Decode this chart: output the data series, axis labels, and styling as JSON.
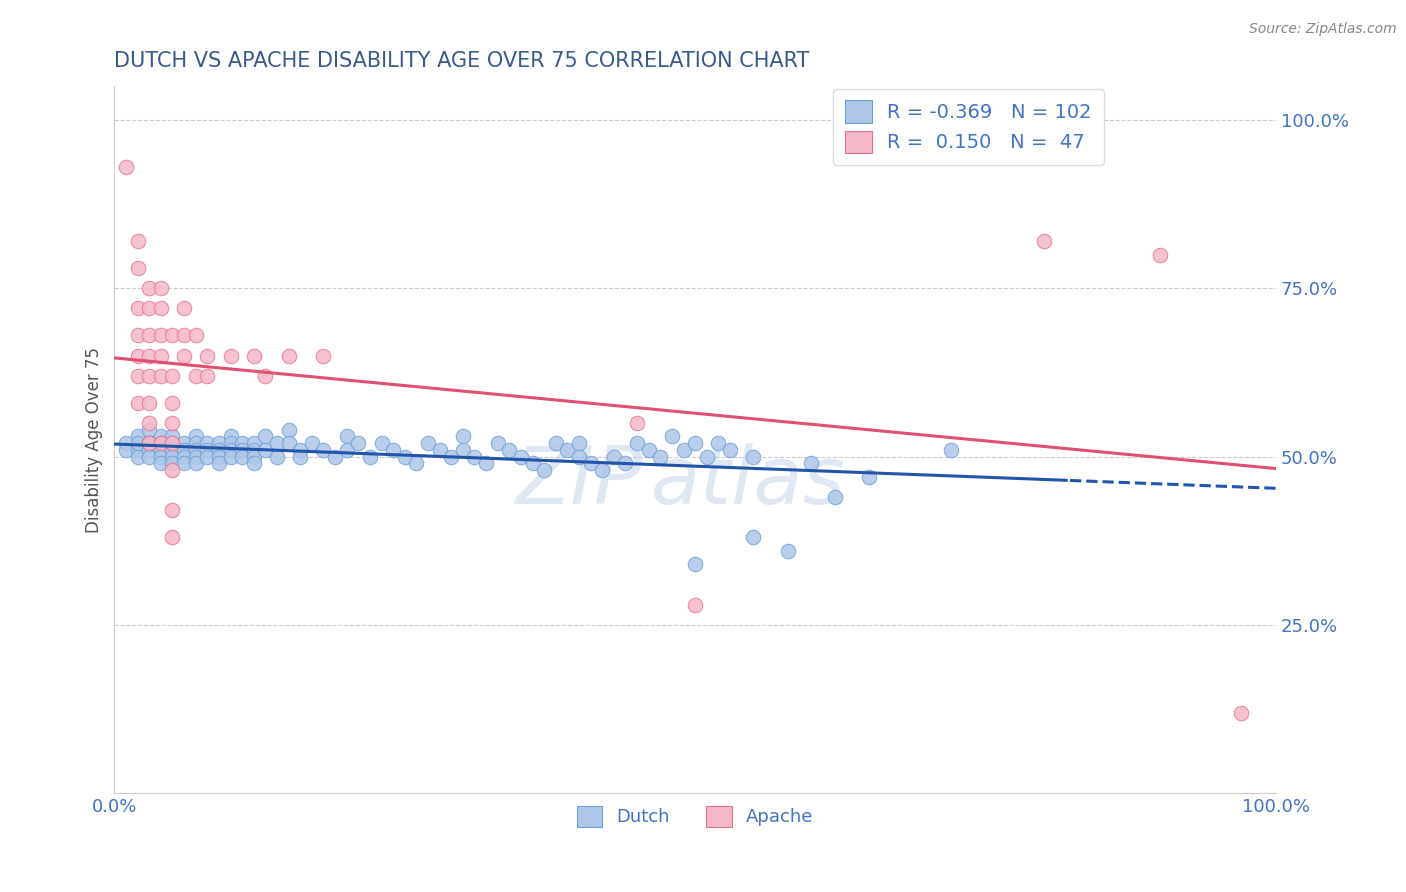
{
  "title": "DUTCH VS APACHE DISABILITY AGE OVER 75 CORRELATION CHART",
  "source": "Source: ZipAtlas.com",
  "ylabel": "Disability Age Over 75",
  "r_dutch": -0.369,
  "n_dutch": 102,
  "r_apache": 0.15,
  "n_apache": 47,
  "watermark_top": "ZIP",
  "watermark_bot": "atlas",
  "title_color": "#3a5a8c",
  "axis_tick_color": "#4472c4",
  "ylabel_color": "#555555",
  "dutch_fill": "#aec6e8",
  "apache_fill": "#f5b8c8",
  "dutch_edge": "#6a9fd8",
  "apache_edge": "#e87090",
  "dutch_line_color": "#2255aa",
  "apache_line_color": "#e05070",
  "grid_color": "#cccccc",
  "background_color": "#ffffff",
  "dutch_scatter": [
    [
      0.01,
      0.52
    ],
    [
      0.01,
      0.51
    ],
    [
      0.02,
      0.53
    ],
    [
      0.02,
      0.51
    ],
    [
      0.02,
      0.5
    ],
    [
      0.02,
      0.52
    ],
    [
      0.03,
      0.54
    ],
    [
      0.03,
      0.52
    ],
    [
      0.03,
      0.51
    ],
    [
      0.03,
      0.5
    ],
    [
      0.03,
      0.52
    ],
    [
      0.04,
      0.53
    ],
    [
      0.04,
      0.52
    ],
    [
      0.04,
      0.51
    ],
    [
      0.04,
      0.5
    ],
    [
      0.04,
      0.49
    ],
    [
      0.05,
      0.53
    ],
    [
      0.05,
      0.52
    ],
    [
      0.05,
      0.51
    ],
    [
      0.05,
      0.5
    ],
    [
      0.05,
      0.49
    ],
    [
      0.06,
      0.52
    ],
    [
      0.06,
      0.51
    ],
    [
      0.06,
      0.5
    ],
    [
      0.06,
      0.49
    ],
    [
      0.07,
      0.53
    ],
    [
      0.07,
      0.52
    ],
    [
      0.07,
      0.51
    ],
    [
      0.07,
      0.5
    ],
    [
      0.07,
      0.49
    ],
    [
      0.08,
      0.52
    ],
    [
      0.08,
      0.51
    ],
    [
      0.08,
      0.5
    ],
    [
      0.09,
      0.52
    ],
    [
      0.09,
      0.51
    ],
    [
      0.09,
      0.5
    ],
    [
      0.09,
      0.49
    ],
    [
      0.1,
      0.53
    ],
    [
      0.1,
      0.52
    ],
    [
      0.1,
      0.51
    ],
    [
      0.1,
      0.5
    ],
    [
      0.11,
      0.52
    ],
    [
      0.11,
      0.51
    ],
    [
      0.11,
      0.5
    ],
    [
      0.12,
      0.52
    ],
    [
      0.12,
      0.51
    ],
    [
      0.12,
      0.5
    ],
    [
      0.12,
      0.49
    ],
    [
      0.13,
      0.53
    ],
    [
      0.13,
      0.51
    ],
    [
      0.14,
      0.5
    ],
    [
      0.14,
      0.52
    ],
    [
      0.15,
      0.54
    ],
    [
      0.15,
      0.52
    ],
    [
      0.16,
      0.51
    ],
    [
      0.16,
      0.5
    ],
    [
      0.17,
      0.52
    ],
    [
      0.18,
      0.51
    ],
    [
      0.19,
      0.5
    ],
    [
      0.2,
      0.53
    ],
    [
      0.2,
      0.51
    ],
    [
      0.21,
      0.52
    ],
    [
      0.22,
      0.5
    ],
    [
      0.23,
      0.52
    ],
    [
      0.24,
      0.51
    ],
    [
      0.25,
      0.5
    ],
    [
      0.26,
      0.49
    ],
    [
      0.27,
      0.52
    ],
    [
      0.28,
      0.51
    ],
    [
      0.29,
      0.5
    ],
    [
      0.3,
      0.53
    ],
    [
      0.3,
      0.51
    ],
    [
      0.31,
      0.5
    ],
    [
      0.32,
      0.49
    ],
    [
      0.33,
      0.52
    ],
    [
      0.34,
      0.51
    ],
    [
      0.35,
      0.5
    ],
    [
      0.36,
      0.49
    ],
    [
      0.37,
      0.48
    ],
    [
      0.38,
      0.52
    ],
    [
      0.39,
      0.51
    ],
    [
      0.4,
      0.52
    ],
    [
      0.4,
      0.5
    ],
    [
      0.41,
      0.49
    ],
    [
      0.42,
      0.48
    ],
    [
      0.43,
      0.5
    ],
    [
      0.44,
      0.49
    ],
    [
      0.45,
      0.52
    ],
    [
      0.46,
      0.51
    ],
    [
      0.47,
      0.5
    ],
    [
      0.48,
      0.53
    ],
    [
      0.49,
      0.51
    ],
    [
      0.5,
      0.52
    ],
    [
      0.51,
      0.5
    ],
    [
      0.52,
      0.52
    ],
    [
      0.53,
      0.51
    ],
    [
      0.55,
      0.5
    ],
    [
      0.6,
      0.49
    ],
    [
      0.62,
      0.44
    ],
    [
      0.65,
      0.47
    ],
    [
      0.72,
      0.51
    ],
    [
      0.5,
      0.34
    ],
    [
      0.55,
      0.38
    ],
    [
      0.58,
      0.36
    ]
  ],
  "apache_scatter": [
    [
      0.01,
      0.93
    ],
    [
      0.02,
      0.82
    ],
    [
      0.02,
      0.78
    ],
    [
      0.02,
      0.72
    ],
    [
      0.02,
      0.68
    ],
    [
      0.02,
      0.65
    ],
    [
      0.02,
      0.62
    ],
    [
      0.02,
      0.58
    ],
    [
      0.03,
      0.75
    ],
    [
      0.03,
      0.72
    ],
    [
      0.03,
      0.68
    ],
    [
      0.03,
      0.65
    ],
    [
      0.03,
      0.62
    ],
    [
      0.03,
      0.58
    ],
    [
      0.03,
      0.55
    ],
    [
      0.03,
      0.52
    ],
    [
      0.04,
      0.75
    ],
    [
      0.04,
      0.72
    ],
    [
      0.04,
      0.68
    ],
    [
      0.04,
      0.65
    ],
    [
      0.04,
      0.62
    ],
    [
      0.04,
      0.52
    ],
    [
      0.05,
      0.68
    ],
    [
      0.05,
      0.62
    ],
    [
      0.05,
      0.58
    ],
    [
      0.05,
      0.55
    ],
    [
      0.05,
      0.52
    ],
    [
      0.05,
      0.48
    ],
    [
      0.05,
      0.42
    ],
    [
      0.05,
      0.38
    ],
    [
      0.06,
      0.72
    ],
    [
      0.06,
      0.68
    ],
    [
      0.06,
      0.65
    ],
    [
      0.07,
      0.68
    ],
    [
      0.07,
      0.62
    ],
    [
      0.08,
      0.65
    ],
    [
      0.08,
      0.62
    ],
    [
      0.1,
      0.65
    ],
    [
      0.12,
      0.65
    ],
    [
      0.13,
      0.62
    ],
    [
      0.15,
      0.65
    ],
    [
      0.18,
      0.65
    ],
    [
      0.45,
      0.55
    ],
    [
      0.5,
      0.28
    ],
    [
      0.8,
      0.82
    ],
    [
      0.9,
      0.8
    ],
    [
      0.97,
      0.12
    ]
  ],
  "xlim": [
    0.0,
    1.0
  ],
  "ylim": [
    0.0,
    1.05
  ],
  "ytick_positions": [
    0.0,
    0.25,
    0.5,
    0.75,
    1.0
  ],
  "ytick_labels": [
    "",
    "25.0%",
    "50.0%",
    "75.0%",
    "100.0%"
  ],
  "xtick_positions": [
    0.0,
    1.0
  ],
  "xtick_labels": [
    "0.0%",
    "100.0%"
  ]
}
